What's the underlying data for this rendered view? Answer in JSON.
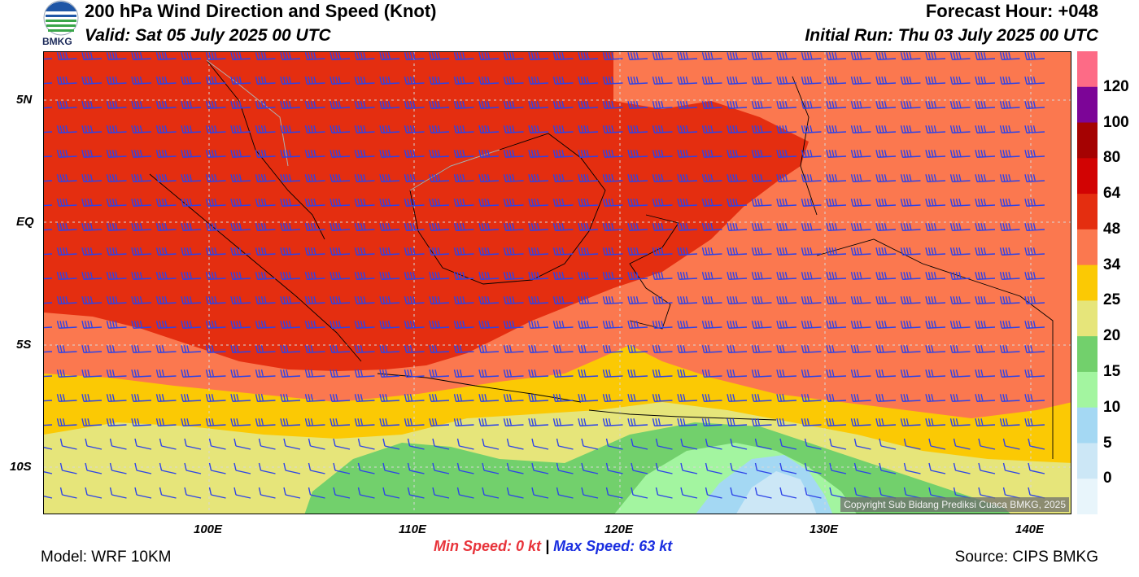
{
  "header": {
    "logo_text": "BMKG",
    "title": "200 hPa Wind Direction and Speed (Knot)",
    "valid": "Valid: Sat 05 July 2025 00 UTC",
    "forecast_hour": "Forecast Hour: +048",
    "initial_run": "Initial Run: Thu 03 July 2025 00 UTC"
  },
  "map": {
    "lat_labels": [
      "5N",
      "EQ",
      "5S",
      "10S"
    ],
    "lon_labels": [
      "100E",
      "110E",
      "120E",
      "130E",
      "140E"
    ],
    "copyright": "Copyright Sub Bidang Prediksi Cuaca BMKG, 2025",
    "barb_color": "#2d43e8",
    "coastline_color": "#000000"
  },
  "colorbar": {
    "labels": [
      "120",
      "100",
      "80",
      "64",
      "48",
      "34",
      "25",
      "20",
      "15",
      "10",
      "5",
      "0"
    ],
    "colors": [
      "#fd6b86",
      "#7c0597",
      "#a50202",
      "#d20303",
      "#e42e10",
      "#fb784f",
      "#fbc904",
      "#e6e57a",
      "#72d06c",
      "#a3f5a0",
      "#a4d8f3",
      "#cce7f6",
      "#e8f5fb"
    ]
  },
  "stats": {
    "min_label": "Min Speed:",
    "min_value": "0 kt",
    "separator": "|",
    "max_label": "Max Speed:",
    "max_value": "63 kt",
    "min_color": "#e8333a",
    "max_color": "#1a2ee0"
  },
  "footer": {
    "model": "Model: WRF 10KM",
    "source": "Source: CIPS BMKG"
  }
}
